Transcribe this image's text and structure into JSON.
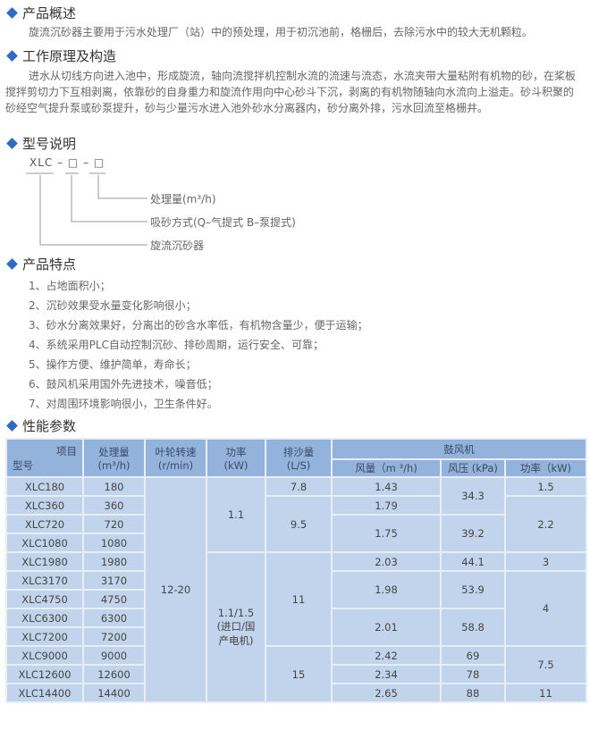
{
  "sections": {
    "overview": {
      "title": "产品概述",
      "text": "旋流沉砂器主要用于污水处理厂（站）中的预处理，用于初沉池前，格栅后，去除污水中的较大无机颗粒。"
    },
    "principle": {
      "title": "工作原理及构造",
      "text": "进水从切线方向进入池中，形成旋流，轴向流搅拌机控制水流的流速与流态，水流夹带大量粘附有机物的砂，在桨板搅拌剪切力下互相剥离，依靠砂的自身重力和旋流作用向中心砂斗下沉，剥离的有机物随轴向水流向上溢走。砂斗积聚的砂经空气提升泵或砂泵提升，砂与少量污水进入池外砂水分离器内，砂分离外排，污水回流至格栅井。"
    },
    "model": {
      "title": "型号说明",
      "code": "XLC – □ – □",
      "labels": [
        "处理量(m³/h)",
        "吸砂方式(Q–气提式  B–泵提式)",
        "旋流沉砂器"
      ]
    },
    "features": {
      "title": "产品特点",
      "items": [
        "1、占地面积小；",
        "2、沉砂效果受水量变化影响很小；",
        "3、砂水分离效果好，分离出的砂含水率低，有机物含量少，便于运输；",
        "4、系统采用PLC自动控制沉砂、排砂周期，运行安全、可靠；",
        "5、操作方便、维护简单，寿命长；",
        "6、鼓风机采用国外先进技术，噪音低；",
        "7、对周围环境影响很小，卫生条件好。"
      ]
    },
    "params": {
      "title": "性能参数"
    }
  },
  "table": {
    "h_item": "项目",
    "h_model": "型号",
    "h_flow": "处理量\n(m³/h)",
    "h_rpm": "叶轮转速\n(r/min)",
    "h_power": "功率\n(kW)",
    "h_sand": "排沙量\n(L/S)",
    "h_blower": "鼓风机",
    "h_air": "风量（m ³/h)",
    "h_press": "风压 (kPa)",
    "h_bpower": "功率（kW)",
    "models": [
      "XLC180",
      "XLC360",
      "XLC720",
      "XLC1080",
      "XLC1980",
      "XLC3170",
      "XLC4750",
      "XLC6300",
      "XLC7200",
      "XLC9000",
      "XLC12600",
      "XLC14400"
    ],
    "flows": [
      "180",
      "360",
      "720",
      "1080",
      "1980",
      "3170",
      "4750",
      "6300",
      "7200",
      "9000",
      "12600",
      "14400"
    ],
    "rpm": "12-20",
    "power": [
      "1.1",
      "1.1/1.5\n(进口/国\n产电机)"
    ],
    "sand": [
      "7.8",
      "9.5",
      "11",
      "15"
    ],
    "air": [
      "1.43",
      "1.79",
      "1.75",
      "2.03",
      "1.98",
      "2.01",
      "2.42",
      "2.34",
      "2.65"
    ],
    "press": [
      "34.3",
      "39.2",
      "44.1",
      "53.9",
      "58.8",
      "69",
      "78",
      "88"
    ],
    "bpower": [
      "1.5",
      "2.2",
      "3",
      "4",
      "7.5",
      "11"
    ]
  }
}
